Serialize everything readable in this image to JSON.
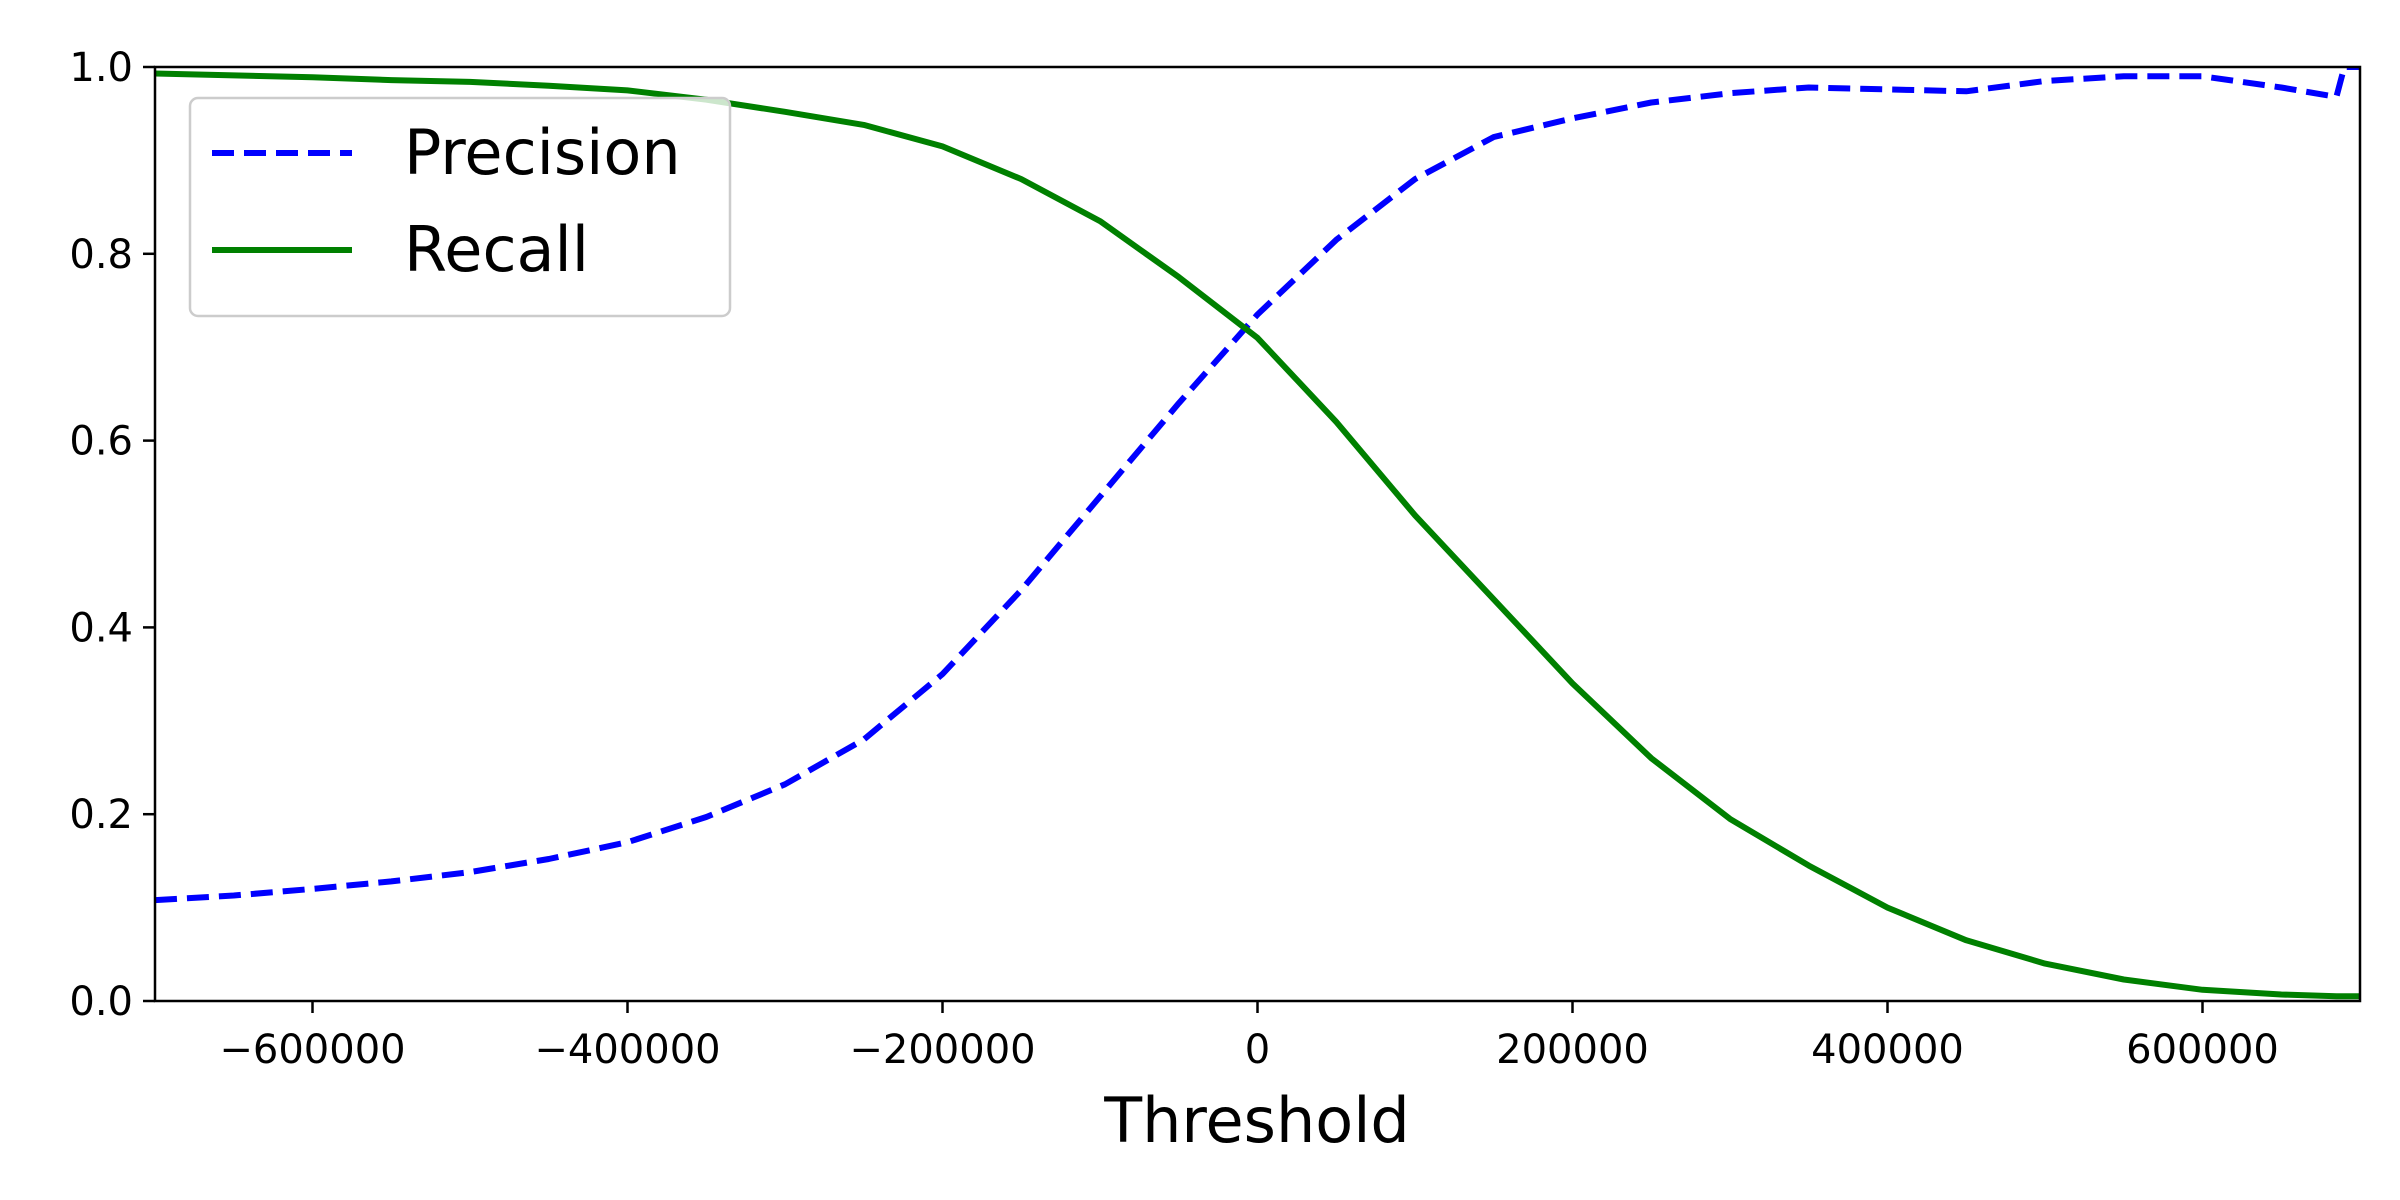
{
  "chart_data": {
    "type": "line",
    "title": "",
    "xlabel": "Threshold",
    "ylabel": "",
    "xlim": [
      -700000,
      700000
    ],
    "ylim": [
      0.0,
      1.0
    ],
    "x_ticks": [
      -600000,
      -400000,
      -200000,
      0,
      200000,
      400000,
      600000
    ],
    "x_tick_labels": [
      "−600000",
      "−400000",
      "−200000",
      "0",
      "200000",
      "400000",
      "600000"
    ],
    "y_ticks": [
      0.0,
      0.2,
      0.4,
      0.6,
      0.8,
      1.0
    ],
    "y_tick_labels": [
      "0.0",
      "0.2",
      "0.4",
      "0.6",
      "0.8",
      "1.0"
    ],
    "grid": false,
    "legend_position": "upper-left",
    "x": [
      -700000,
      -650000,
      -600000,
      -550000,
      -500000,
      -450000,
      -400000,
      -350000,
      -300000,
      -250000,
      -200000,
      -150000,
      -100000,
      -50000,
      0,
      50000,
      100000,
      150000,
      200000,
      250000,
      300000,
      350000,
      400000,
      450000,
      500000,
      550000,
      600000,
      650000,
      685000,
      690000,
      700000
    ],
    "series": [
      {
        "name": "Precision",
        "color": "#0000ff",
        "style": "dashed",
        "values": [
          0.108,
          0.113,
          0.12,
          0.128,
          0.138,
          0.152,
          0.17,
          0.197,
          0.232,
          0.28,
          0.35,
          0.44,
          0.54,
          0.64,
          0.735,
          0.815,
          0.88,
          0.925,
          0.945,
          0.962,
          0.972,
          0.978,
          0.976,
          0.974,
          0.985,
          0.99,
          0.99,
          0.978,
          0.968,
          1.0,
          1.0
        ]
      },
      {
        "name": "Recall",
        "color": "#008000",
        "style": "solid",
        "values": [
          0.993,
          0.991,
          0.989,
          0.986,
          0.984,
          0.98,
          0.975,
          0.965,
          0.952,
          0.938,
          0.915,
          0.88,
          0.835,
          0.775,
          0.71,
          0.62,
          0.52,
          0.43,
          0.34,
          0.26,
          0.195,
          0.145,
          0.1,
          0.065,
          0.04,
          0.023,
          0.012,
          0.007,
          0.005,
          0.005,
          0.005
        ]
      }
    ]
  }
}
